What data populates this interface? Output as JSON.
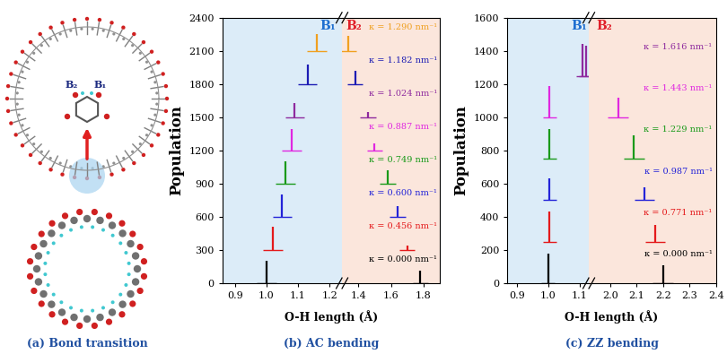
{
  "diagram": {
    "caption": "(a) Bond transition",
    "bond_labels": [
      "B₂",
      "B₁"
    ]
  },
  "chart_data": [
    {
      "type": "stem",
      "title": "(b) AC bending",
      "x_label": "O-H length (Å)",
      "y_label": "Population",
      "region_labels": [
        {
          "name": "B₁",
          "color": "#1f6fd0"
        },
        {
          "name": "B₂",
          "color": "#e0202a"
        }
      ],
      "xlim": [
        0.86,
        1.9
      ],
      "x_break": [
        1.24,
        1.3
      ],
      "xticks": [
        0.9,
        1.0,
        1.1,
        1.2,
        1.4,
        1.6,
        1.8
      ],
      "ylim": [
        0,
        2400
      ],
      "yticks": [
        0,
        300,
        600,
        900,
        1200,
        1500,
        1800,
        2100,
        2400
      ],
      "series": [
        {
          "name": "κ = 0.000 nm⁻¹",
          "color": "#000000",
          "baseline": 0,
          "x": [
            1.0,
            1.78
          ],
          "values": [
            200,
            110
          ]
        },
        {
          "name": "κ = 0.456 nm⁻¹",
          "color": "#e41a1c",
          "baseline": 300,
          "x": [
            1.02,
            1.7
          ],
          "values": [
            510,
            340
          ]
        },
        {
          "name": "κ = 0.600 nm⁻¹",
          "color": "#2424d8",
          "baseline": 600,
          "x": [
            1.05,
            1.64
          ],
          "values": [
            800,
            700
          ]
        },
        {
          "name": "κ = 0.749 nm⁻¹",
          "color": "#1a9a1a",
          "baseline": 900,
          "x": [
            1.06,
            1.58
          ],
          "values": [
            1100,
            1020
          ]
        },
        {
          "name": "κ = 0.887 nm⁻¹",
          "color": "#e028e0",
          "baseline": 1200,
          "x": [
            1.08,
            1.5
          ],
          "values": [
            1390,
            1260
          ]
        },
        {
          "name": "κ = 1.024 nm⁻¹",
          "color": "#8e2a9e",
          "baseline": 1500,
          "x": [
            1.09,
            1.46
          ],
          "values": [
            1630,
            1550
          ]
        },
        {
          "name": "κ = 1.182 nm⁻¹",
          "color": "#1c1cb4",
          "baseline": 1800,
          "x": [
            1.13,
            1.38
          ],
          "values": [
            1980,
            1920
          ]
        },
        {
          "name": "κ = 1.290 nm⁻¹",
          "color": "#f0a020",
          "baseline": 2100,
          "x": [
            1.16,
            1.34
          ],
          "values": [
            2250,
            2240
          ]
        }
      ]
    },
    {
      "type": "stem",
      "title": "(c) ZZ bending",
      "x_label": "O-H length (Å)",
      "y_label": "Population",
      "region_labels": [
        {
          "name": "B₁",
          "color": "#1f6fd0"
        },
        {
          "name": "B₂",
          "color": "#e0202a"
        }
      ],
      "xlim": [
        0.87,
        2.4
      ],
      "x_break": [
        1.13,
        1.92
      ],
      "xticks": [
        0.9,
        1.0,
        1.1,
        2.0,
        2.1,
        2.2,
        2.3,
        2.4
      ],
      "ylim": [
        0,
        1600
      ],
      "yticks": [
        0,
        200,
        400,
        600,
        800,
        1000,
        1200,
        1400,
        1600
      ],
      "series": [
        {
          "name": "κ = 0.000 nm⁻¹",
          "color": "#000000",
          "baseline": 0,
          "x": [
            1.0,
            2.2
          ],
          "values": [
            180,
            110
          ]
        },
        {
          "name": "κ = 0.771 nm⁻¹",
          "color": "#e41a1c",
          "baseline": 250,
          "x": [
            1.005,
            2.17
          ],
          "values": [
            430,
            350
          ]
        },
        {
          "name": "κ = 0.987 nm⁻¹",
          "color": "#2424d8",
          "baseline": 500,
          "x": [
            1.005,
            2.13
          ],
          "values": [
            630,
            580
          ]
        },
        {
          "name": "κ = 1.229 nm⁻¹",
          "color": "#1a9a1a",
          "baseline": 750,
          "x": [
            1.005,
            2.09
          ],
          "values": [
            930,
            890
          ]
        },
        {
          "name": "κ = 1.443 nm⁻¹",
          "color": "#e028e0",
          "baseline": 1000,
          "x": [
            1.005,
            2.03
          ],
          "values": [
            1190,
            1120
          ]
        },
        {
          "name": "κ = 1.616 nm⁻¹",
          "color": "#8e2a9e",
          "baseline": 1250,
          "x": [
            1.11,
            1.12
          ],
          "values": [
            1440,
            1430
          ]
        }
      ]
    }
  ]
}
